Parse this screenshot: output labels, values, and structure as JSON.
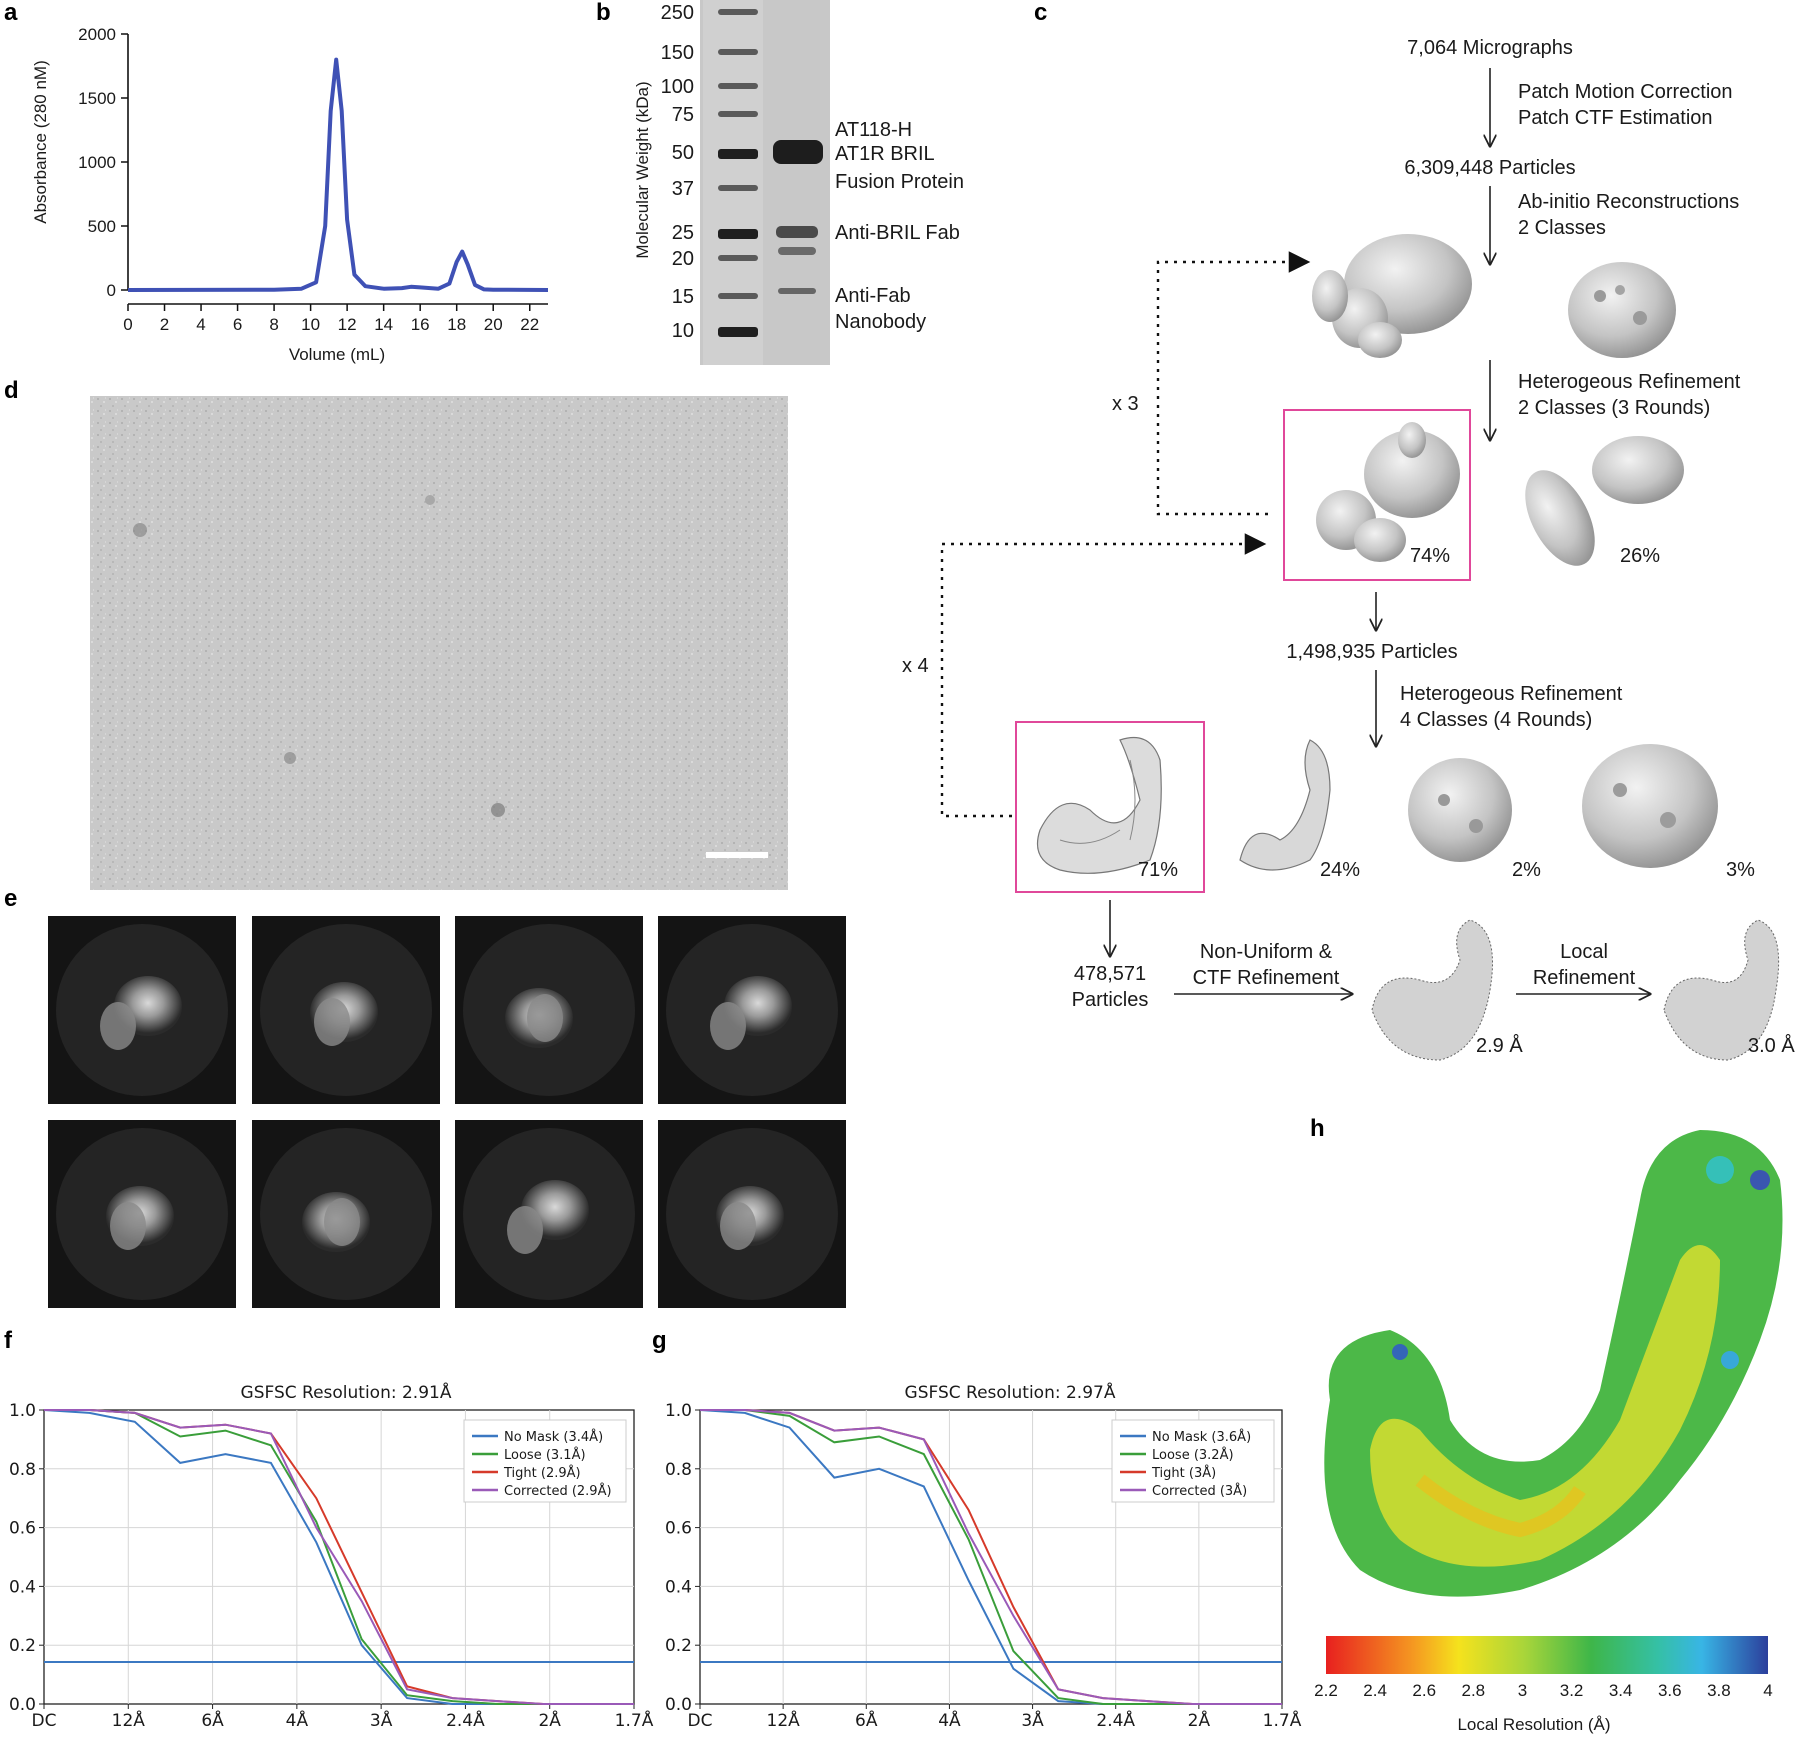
{
  "panel_labels": [
    "a",
    "b",
    "c",
    "d",
    "e",
    "f",
    "g",
    "h"
  ],
  "colors": {
    "sec_line": "#3f51b5",
    "no_mask": "#3b78c2",
    "loose": "#3a9e3a",
    "tight": "#d63a2a",
    "corrected": "#9a5ab8",
    "highlight_box": "#e0489a"
  },
  "icons": [
    "down-arrow-icon",
    "right-arrow-icon",
    "dotted-feedback-arrow-icon",
    "scale-bar-icon"
  ],
  "chart_data": [
    {
      "type": "line",
      "panel": "a",
      "title": "",
      "xlabel": "Volume (mL)",
      "ylabel": "Absorbance (280 nM)",
      "xlim": [
        0,
        23
      ],
      "ylim": [
        0,
        2000
      ],
      "xticks": [
        "0",
        "2",
        "4",
        "6",
        "8",
        "10",
        "12",
        "14",
        "16",
        "18",
        "20",
        "22"
      ],
      "yticks": [
        "0",
        "500",
        "1000",
        "1500",
        "2000"
      ],
      "series": [
        {
          "values_x": [
            0,
            8,
            9.5,
            10.3,
            10.8,
            11.1,
            11.4,
            11.7,
            12.0,
            12.4,
            13,
            14,
            15,
            15.5,
            16,
            17,
            17.6,
            18.0,
            18.3,
            18.6,
            19.0,
            19.5,
            20,
            23
          ],
          "values_y": [
            0,
            2,
            10,
            60,
            500,
            1400,
            1800,
            1400,
            550,
            120,
            30,
            10,
            15,
            25,
            20,
            10,
            50,
            220,
            300,
            200,
            40,
            5,
            2,
            0
          ]
        }
      ]
    },
    {
      "type": "line",
      "panel": "f",
      "title": "GSFSC Resolution: 2.91Å",
      "xticks": [
        "DC",
        "12Å",
        "6Å",
        "4Å",
        "3Å",
        "2.4Å",
        "2Å",
        "1.7Å"
      ],
      "yticks": [
        "0.0",
        "0.2",
        "0.4",
        "0.6",
        "0.8",
        "1.0"
      ],
      "ylim": [
        0,
        1
      ],
      "threshold": 0.143,
      "legend_position": "top-right",
      "series": [
        {
          "name": "No Mask (3.4Å)",
          "values": [
            1,
            0.99,
            0.96,
            0.82,
            0.85,
            0.82,
            0.55,
            0.2,
            0.02,
            0,
            0,
            0,
            0,
            0
          ]
        },
        {
          "name": "Loose (3.1Å)",
          "values": [
            1,
            1,
            0.99,
            0.91,
            0.93,
            0.88,
            0.62,
            0.22,
            0.03,
            0.01,
            0,
            0,
            0,
            0
          ]
        },
        {
          "name": "Tight (2.9Å)",
          "values": [
            1,
            1,
            0.99,
            0.94,
            0.95,
            0.92,
            0.7,
            0.38,
            0.06,
            0.02,
            0.01,
            0,
            0,
            0
          ]
        },
        {
          "name": "Corrected (2.9Å)",
          "values": [
            1,
            1,
            0.99,
            0.94,
            0.95,
            0.92,
            0.6,
            0.35,
            0.05,
            0.02,
            0.01,
            0,
            0,
            0
          ]
        }
      ]
    },
    {
      "type": "line",
      "panel": "g",
      "title": "GSFSC Resolution: 2.97Å",
      "xticks": [
        "DC",
        "12Å",
        "6Å",
        "4Å",
        "3Å",
        "2.4Å",
        "2Å",
        "1.7Å"
      ],
      "yticks": [
        "0.0",
        "0.2",
        "0.4",
        "0.6",
        "0.8",
        "1.0"
      ],
      "ylim": [
        0,
        1
      ],
      "threshold": 0.143,
      "legend_position": "top-right",
      "series": [
        {
          "name": "No Mask (3.6Å)",
          "values": [
            1,
            0.99,
            0.94,
            0.77,
            0.8,
            0.74,
            0.42,
            0.12,
            0.01,
            0,
            0,
            0,
            0,
            0
          ]
        },
        {
          "name": "Loose (3.2Å)",
          "values": [
            1,
            1,
            0.98,
            0.89,
            0.91,
            0.85,
            0.56,
            0.18,
            0.02,
            0,
            0,
            0,
            0,
            0
          ]
        },
        {
          "name": "Tight (3Å)",
          "values": [
            1,
            1,
            0.99,
            0.93,
            0.94,
            0.9,
            0.66,
            0.33,
            0.05,
            0.02,
            0.01,
            0,
            0,
            0
          ]
        },
        {
          "name": "Corrected (3Å)",
          "values": [
            1,
            1,
            0.99,
            0.93,
            0.94,
            0.9,
            0.58,
            0.3,
            0.05,
            0.02,
            0.01,
            0,
            0,
            0
          ]
        }
      ]
    }
  ],
  "gel": {
    "ylabel": "Molecular Weight (kDa)",
    "markers": [
      "250",
      "150",
      "100",
      "75",
      "50",
      "37",
      "25",
      "20",
      "15",
      "10"
    ],
    "annotations": [
      "AT118-H",
      "AT1R BRIL",
      "Fusion Protein",
      "Anti-BRIL Fab",
      "Anti-Fab",
      "Nanobody"
    ]
  },
  "workflow": {
    "micrographs": "7,064 Micrographs",
    "step1a": "Patch Motion Correction",
    "step1b": "Patch CTF Estimation",
    "particles1": "6,309,448 Particles",
    "step2a": "Ab-initio Reconstructions",
    "step2b": "2 Classes",
    "step3a": "Heterogeous Refinement",
    "step3b": "2 Classes (3 Rounds)",
    "pct_74": "74%",
    "pct_26": "26%",
    "repeat3": "x 3",
    "particles2": "1,498,935 Particles",
    "step4a": "Heterogeous Refinement",
    "step4b": "4 Classes (4 Rounds)",
    "repeat4": "x 4",
    "pct_71": "71%",
    "pct_24": "24%",
    "pct_2": "2%",
    "pct_3": "3%",
    "particles3a": "478,571",
    "particles3b": "Particles",
    "step5a": "Non-Uniform &",
    "step5b": "CTF Refinement",
    "res1": "2.9 Å",
    "step6a": "Local",
    "step6b": "Refinement",
    "res2": "3.0 Å"
  },
  "local_res": {
    "ticks": [
      "2.2",
      "2.4",
      "2.6",
      "2.8",
      "3",
      "3.2",
      "3.4",
      "3.6",
      "3.8",
      "4"
    ],
    "label": "Local Resolution (Å)"
  }
}
